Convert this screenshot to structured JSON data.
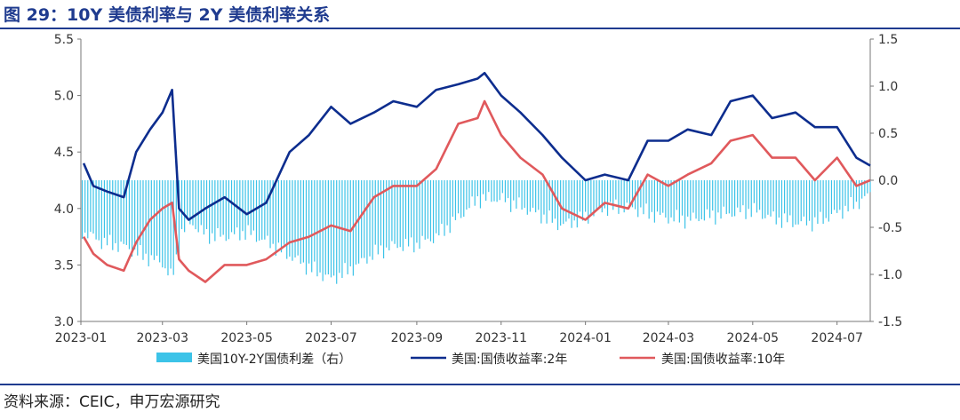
{
  "header": {
    "title": "图 29：10Y 美债利率与 2Y 美债利率关系"
  },
  "footer": {
    "source": "资料来源：CEIC，申万宏源研究"
  },
  "colors": {
    "bar": "#3cc3e8",
    "y2": "#0d2d8e",
    "y10": "#e0595c",
    "title": "#1f3b8f"
  },
  "chart_data": {
    "type": "line",
    "x_ticks": [
      "2023-01",
      "2023-03",
      "2023-05",
      "2023-07",
      "2023-09",
      "2023-11",
      "2024-01",
      "2024-03",
      "2024-05",
      "2024-07"
    ],
    "y_left": {
      "range": [
        3.0,
        5.5
      ],
      "ticks": [
        "3.0",
        "3.5",
        "4.0",
        "4.5",
        "5.0",
        "5.5"
      ]
    },
    "y_right": {
      "range": [
        -1.5,
        1.5
      ],
      "ticks": [
        "-1.5",
        "-1.0",
        "-0.5",
        "0.0",
        "0.5",
        "1.0",
        "1.5"
      ]
    },
    "x_range": [
      "2023-01-01",
      "2024-07-25"
    ],
    "series": [
      {
        "name": "美国10Y-2Y国债利差（右）",
        "type": "bar",
        "axis": "right",
        "points": [
          [
            "2023-01-03",
            -0.55
          ],
          [
            "2023-01-17",
            -0.66
          ],
          [
            "2023-02-01",
            -0.7
          ],
          [
            "2023-02-15",
            -0.8
          ],
          [
            "2023-03-01",
            -0.88
          ],
          [
            "2023-03-08",
            -1.05
          ],
          [
            "2023-03-15",
            -0.55
          ],
          [
            "2023-03-22",
            -0.45
          ],
          [
            "2023-04-01",
            -0.58
          ],
          [
            "2023-04-15",
            -0.6
          ],
          [
            "2023-05-01",
            -0.55
          ],
          [
            "2023-05-15",
            -0.65
          ],
          [
            "2023-06-01",
            -0.8
          ],
          [
            "2023-06-15",
            -0.93
          ],
          [
            "2023-07-01",
            -1.05
          ],
          [
            "2023-07-15",
            -0.95
          ],
          [
            "2023-08-01",
            -0.78
          ],
          [
            "2023-08-15",
            -0.7
          ],
          [
            "2023-09-01",
            -0.68
          ],
          [
            "2023-09-15",
            -0.6
          ],
          [
            "2023-10-01",
            -0.4
          ],
          [
            "2023-10-15",
            -0.2
          ],
          [
            "2023-11-01",
            -0.2
          ],
          [
            "2023-11-15",
            -0.28
          ],
          [
            "2023-12-01",
            -0.38
          ],
          [
            "2023-12-15",
            -0.48
          ],
          [
            "2024-01-01",
            -0.4
          ],
          [
            "2024-01-15",
            -0.3
          ],
          [
            "2024-02-01",
            -0.28
          ],
          [
            "2024-02-15",
            -0.35
          ],
          [
            "2024-03-01",
            -0.4
          ],
          [
            "2024-03-15",
            -0.42
          ],
          [
            "2024-04-01",
            -0.38
          ],
          [
            "2024-04-15",
            -0.35
          ],
          [
            "2024-05-01",
            -0.32
          ],
          [
            "2024-05-15",
            -0.4
          ],
          [
            "2024-06-01",
            -0.45
          ],
          [
            "2024-06-15",
            -0.45
          ],
          [
            "2024-07-01",
            -0.35
          ],
          [
            "2024-07-15",
            -0.25
          ],
          [
            "2024-07-25",
            -0.15
          ]
        ]
      },
      {
        "name": "美国:国债收益率:2年",
        "type": "line",
        "axis": "left",
        "points": [
          [
            "2023-01-03",
            4.4
          ],
          [
            "2023-01-10",
            4.2
          ],
          [
            "2023-01-20",
            4.15
          ],
          [
            "2023-02-01",
            4.1
          ],
          [
            "2023-02-10",
            4.5
          ],
          [
            "2023-02-20",
            4.7
          ],
          [
            "2023-03-01",
            4.85
          ],
          [
            "2023-03-08",
            5.05
          ],
          [
            "2023-03-13",
            4.0
          ],
          [
            "2023-03-20",
            3.9
          ],
          [
            "2023-04-01",
            4.0
          ],
          [
            "2023-04-15",
            4.1
          ],
          [
            "2023-05-01",
            3.95
          ],
          [
            "2023-05-15",
            4.05
          ],
          [
            "2023-06-01",
            4.5
          ],
          [
            "2023-06-15",
            4.65
          ],
          [
            "2023-07-01",
            4.9
          ],
          [
            "2023-07-15",
            4.75
          ],
          [
            "2023-08-01",
            4.85
          ],
          [
            "2023-08-15",
            4.95
          ],
          [
            "2023-09-01",
            4.9
          ],
          [
            "2023-09-15",
            5.05
          ],
          [
            "2023-10-01",
            5.1
          ],
          [
            "2023-10-15",
            5.15
          ],
          [
            "2023-10-20",
            5.2
          ],
          [
            "2023-11-01",
            5.0
          ],
          [
            "2023-11-15",
            4.85
          ],
          [
            "2023-12-01",
            4.65
          ],
          [
            "2023-12-15",
            4.45
          ],
          [
            "2024-01-01",
            4.25
          ],
          [
            "2024-01-15",
            4.3
          ],
          [
            "2024-02-01",
            4.25
          ],
          [
            "2024-02-15",
            4.6
          ],
          [
            "2024-03-01",
            4.6
          ],
          [
            "2024-03-15",
            4.7
          ],
          [
            "2024-04-01",
            4.65
          ],
          [
            "2024-04-15",
            4.95
          ],
          [
            "2024-05-01",
            5.0
          ],
          [
            "2024-05-15",
            4.8
          ],
          [
            "2024-06-01",
            4.85
          ],
          [
            "2024-06-15",
            4.72
          ],
          [
            "2024-07-01",
            4.72
          ],
          [
            "2024-07-15",
            4.45
          ],
          [
            "2024-07-25",
            4.38
          ]
        ]
      },
      {
        "name": "美国:国债收益率:10年",
        "type": "line",
        "axis": "left",
        "points": [
          [
            "2023-01-03",
            3.75
          ],
          [
            "2023-01-10",
            3.6
          ],
          [
            "2023-01-20",
            3.5
          ],
          [
            "2023-02-01",
            3.45
          ],
          [
            "2023-02-10",
            3.7
          ],
          [
            "2023-02-20",
            3.9
          ],
          [
            "2023-03-01",
            4.0
          ],
          [
            "2023-03-08",
            4.05
          ],
          [
            "2023-03-13",
            3.55
          ],
          [
            "2023-03-20",
            3.45
          ],
          [
            "2023-04-01",
            3.35
          ],
          [
            "2023-04-15",
            3.5
          ],
          [
            "2023-05-01",
            3.5
          ],
          [
            "2023-05-15",
            3.55
          ],
          [
            "2023-06-01",
            3.7
          ],
          [
            "2023-06-15",
            3.75
          ],
          [
            "2023-07-01",
            3.85
          ],
          [
            "2023-07-15",
            3.8
          ],
          [
            "2023-08-01",
            4.1
          ],
          [
            "2023-08-15",
            4.2
          ],
          [
            "2023-09-01",
            4.2
          ],
          [
            "2023-09-15",
            4.35
          ],
          [
            "2023-10-01",
            4.75
          ],
          [
            "2023-10-15",
            4.8
          ],
          [
            "2023-10-20",
            4.95
          ],
          [
            "2023-11-01",
            4.65
          ],
          [
            "2023-11-15",
            4.45
          ],
          [
            "2023-12-01",
            4.3
          ],
          [
            "2023-12-15",
            4.0
          ],
          [
            "2024-01-01",
            3.9
          ],
          [
            "2024-01-15",
            4.05
          ],
          [
            "2024-02-01",
            4.0
          ],
          [
            "2024-02-15",
            4.3
          ],
          [
            "2024-03-01",
            4.2
          ],
          [
            "2024-03-15",
            4.3
          ],
          [
            "2024-04-01",
            4.4
          ],
          [
            "2024-04-15",
            4.6
          ],
          [
            "2024-05-01",
            4.65
          ],
          [
            "2024-05-15",
            4.45
          ],
          [
            "2024-06-01",
            4.45
          ],
          [
            "2024-06-15",
            4.25
          ],
          [
            "2024-07-01",
            4.45
          ],
          [
            "2024-07-15",
            4.2
          ],
          [
            "2024-07-25",
            4.25
          ]
        ]
      }
    ]
  }
}
